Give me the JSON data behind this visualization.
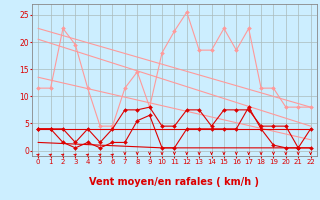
{
  "background_color": "#cceeff",
  "grid_color": "#aabbbb",
  "xlabel": "Vent moyen/en rafales ( km/h )",
  "x_ticks": [
    0,
    1,
    2,
    3,
    4,
    5,
    6,
    7,
    8,
    9,
    10,
    11,
    12,
    13,
    14,
    15,
    16,
    17,
    18,
    19,
    20,
    21,
    22
  ],
  "ylim": [
    -1,
    27
  ],
  "yticks": [
    0,
    5,
    10,
    15,
    20,
    25
  ],
  "series": [
    {
      "name": "line1_pink_high",
      "color": "#ff9999",
      "linewidth": 0.8,
      "marker": "D",
      "markersize": 2,
      "x": [
        0,
        1,
        2,
        3,
        4,
        5,
        6,
        7,
        8,
        9,
        10,
        11,
        12,
        13,
        14,
        15,
        16,
        17,
        18,
        19,
        20,
        21,
        22
      ],
      "y": [
        11.5,
        11.5,
        22.5,
        19.5,
        11.5,
        4.5,
        4.5,
        11.5,
        14.5,
        8.0,
        18.0,
        22.0,
        25.5,
        18.5,
        18.5,
        22.5,
        18.5,
        22.5,
        11.5,
        11.5,
        8.0,
        8.0,
        8.0
      ]
    },
    {
      "name": "line2_pink_trend1",
      "color": "#ff9999",
      "linewidth": 0.8,
      "marker": null,
      "x": [
        0,
        22
      ],
      "y": [
        22.5,
        8.0
      ]
    },
    {
      "name": "line3_pink_trend2",
      "color": "#ff9999",
      "linewidth": 0.8,
      "marker": null,
      "x": [
        0,
        22
      ],
      "y": [
        20.5,
        4.5
      ]
    },
    {
      "name": "line4_pink_trend3",
      "color": "#ff9999",
      "linewidth": 0.8,
      "marker": null,
      "x": [
        0,
        22
      ],
      "y": [
        13.5,
        2.0
      ]
    },
    {
      "name": "line5_dark_red_mid",
      "color": "#dd0000",
      "linewidth": 0.8,
      "marker": "D",
      "markersize": 2,
      "x": [
        0,
        1,
        2,
        3,
        4,
        5,
        6,
        7,
        8,
        9,
        10,
        11,
        12,
        13,
        14,
        15,
        16,
        17,
        18,
        19,
        20,
        21,
        22
      ],
      "y": [
        4.0,
        4.0,
        4.0,
        1.5,
        4.0,
        1.5,
        4.0,
        7.5,
        7.5,
        8.0,
        4.5,
        4.5,
        7.5,
        7.5,
        4.5,
        7.5,
        7.5,
        7.5,
        4.5,
        4.5,
        4.5,
        0.5,
        4.0
      ]
    },
    {
      "name": "line6_dark_red_low",
      "color": "#dd0000",
      "linewidth": 0.8,
      "marker": "D",
      "markersize": 2,
      "x": [
        0,
        1,
        2,
        3,
        4,
        5,
        6,
        7,
        8,
        9,
        10,
        11,
        12,
        13,
        14,
        15,
        16,
        17,
        18,
        19,
        20,
        21,
        22
      ],
      "y": [
        4.0,
        4.0,
        1.5,
        0.5,
        1.5,
        0.5,
        1.5,
        1.5,
        5.5,
        6.5,
        0.5,
        0.5,
        4.0,
        4.0,
        4.0,
        4.0,
        4.0,
        8.0,
        4.0,
        1.0,
        0.5,
        0.5,
        0.5
      ]
    },
    {
      "name": "line7_dark_trend1",
      "color": "#dd0000",
      "linewidth": 0.8,
      "marker": null,
      "x": [
        0,
        22
      ],
      "y": [
        4.0,
        4.0
      ]
    },
    {
      "name": "line8_dark_trend2",
      "color": "#dd0000",
      "linewidth": 0.8,
      "marker": null,
      "x": [
        0,
        10,
        22
      ],
      "y": [
        1.5,
        0.5,
        0.5
      ]
    }
  ],
  "arrow_color": "#dd0000",
  "arrow_xs_diagonal": [
    0,
    1,
    2,
    3,
    4,
    5,
    6
  ],
  "arrow_xs_down": [
    7,
    8,
    9,
    10,
    11,
    12,
    13,
    14,
    15,
    16,
    17,
    18,
    19,
    20,
    21,
    22
  ],
  "xlabel_color": "#dd0000",
  "xlabel_fontsize": 7
}
